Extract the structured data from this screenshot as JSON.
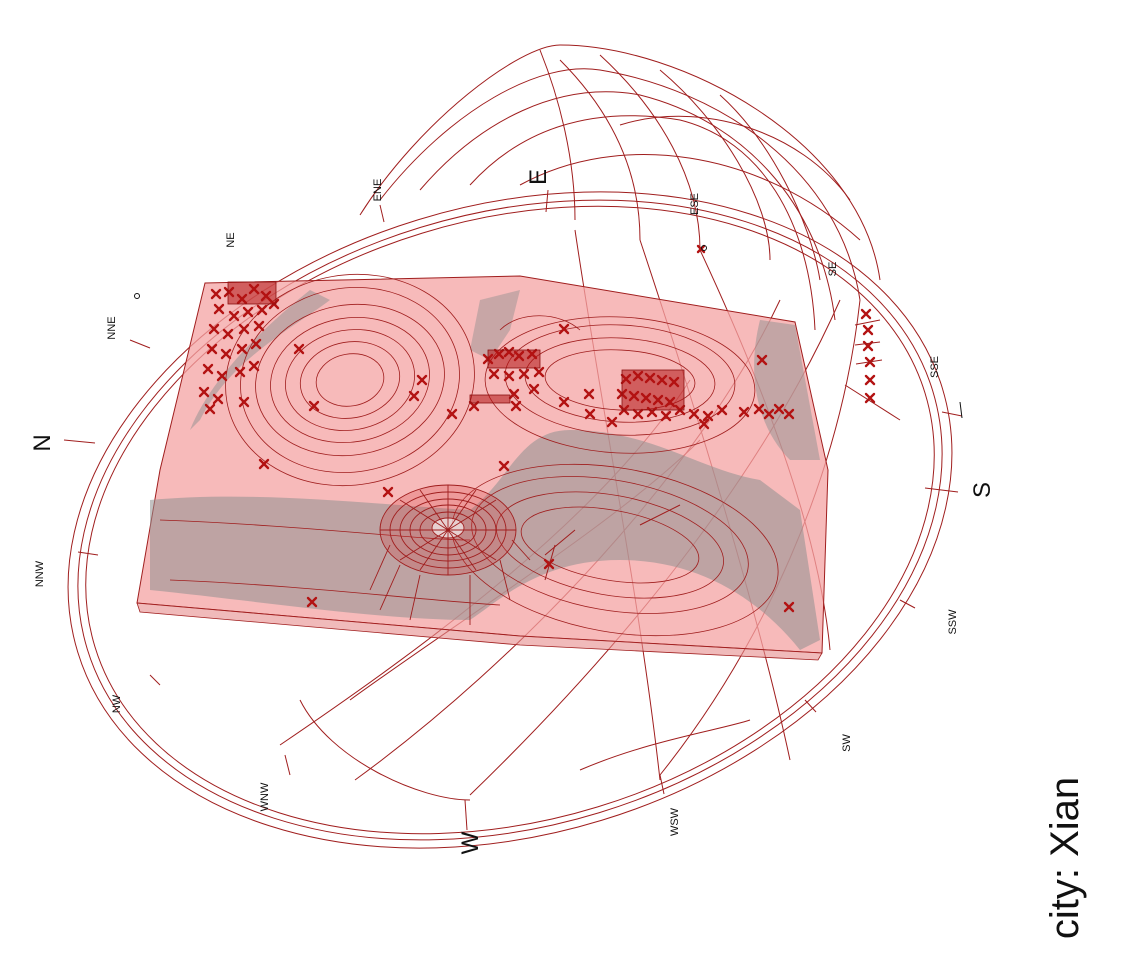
{
  "city_label": "city: Xian",
  "compass": {
    "major": {
      "N": "N",
      "E": "E",
      "S": "S",
      "W": "W"
    },
    "minor": {
      "ENE": "ENE",
      "NE": "NE",
      "NNE": "NNE",
      "NNW": "NNW",
      "NW": "NW",
      "WNW": "WNW",
      "WSW": "WSW",
      "SW": "SW",
      "SSW": "SSW",
      "SSE": "SSE",
      "SE": "SE",
      "ESE": "ESE"
    }
  },
  "colors": {
    "line": "#a01e1e",
    "surface": "#f4a3a3",
    "shadow": "#8f8f8f",
    "marker": "#b31212"
  }
}
